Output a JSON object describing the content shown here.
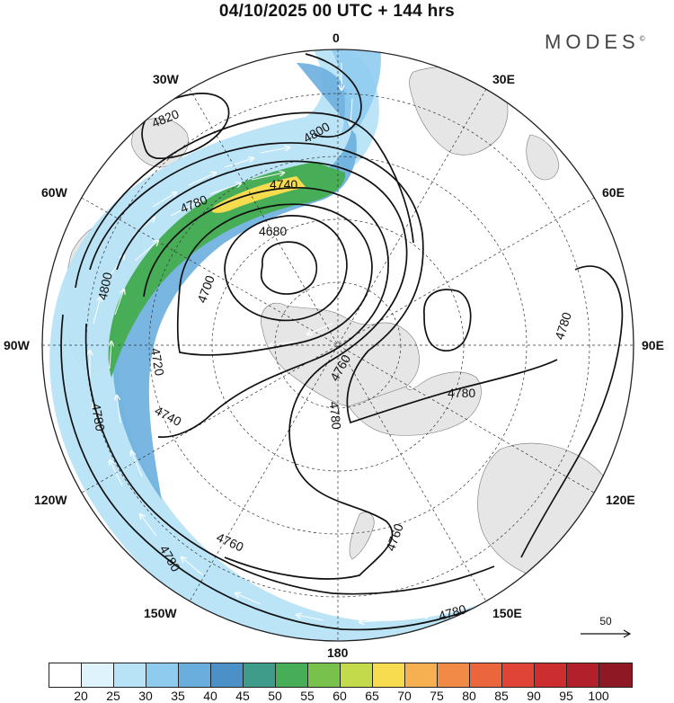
{
  "header": {
    "title": "04/10/2025  00 UTC  + 144 hrs",
    "brand": "MODES",
    "brand_mark": "©"
  },
  "longitude_labels": {
    "top": "0",
    "top_right": "30E",
    "right_upper": "60E",
    "right": "90E",
    "right_lower": "120E",
    "bottom_right": "150E",
    "bottom": "180",
    "bottom_left": "150W",
    "left_lower": "120W",
    "left": "90W",
    "left_upper": "60W",
    "top_left": "30W"
  },
  "contour_labels": [
    {
      "id": "c1",
      "text": "4820"
    },
    {
      "id": "c2",
      "text": "4800"
    },
    {
      "id": "c3",
      "text": "4780"
    },
    {
      "id": "c4",
      "text": "4740"
    },
    {
      "id": "c5",
      "text": "4680"
    },
    {
      "id": "c6",
      "text": "4800"
    },
    {
      "id": "c7",
      "text": "4700"
    },
    {
      "id": "c8",
      "text": "4720"
    },
    {
      "id": "c9",
      "text": "4740"
    },
    {
      "id": "c10",
      "text": "4760"
    },
    {
      "id": "c11",
      "text": "4780"
    },
    {
      "id": "c12",
      "text": "4780"
    },
    {
      "id": "c13",
      "text": "4780"
    },
    {
      "id": "c14",
      "text": "4780"
    },
    {
      "id": "c15",
      "text": "4760"
    },
    {
      "id": "c16",
      "text": "4760"
    },
    {
      "id": "c17",
      "text": "4780"
    },
    {
      "id": "c18",
      "text": "4780"
    }
  ],
  "reference_vector": {
    "label": "50"
  },
  "colorbar": {
    "colors": [
      "#ffffff",
      "#dff3fc",
      "#b8e3f7",
      "#8fcbef",
      "#6aaede",
      "#4b91c8",
      "#3f9b8a",
      "#47ad57",
      "#79c14d",
      "#c3da4b",
      "#f7dc50",
      "#f6b052",
      "#f28a47",
      "#ec663d",
      "#e04436",
      "#cc2e2f",
      "#b2202b",
      "#8e1824"
    ],
    "labels": [
      "20",
      "25",
      "30",
      "35",
      "40",
      "45",
      "50",
      "55",
      "60",
      "65",
      "70",
      "75",
      "80",
      "85",
      "90",
      "95",
      "100"
    ]
  }
}
